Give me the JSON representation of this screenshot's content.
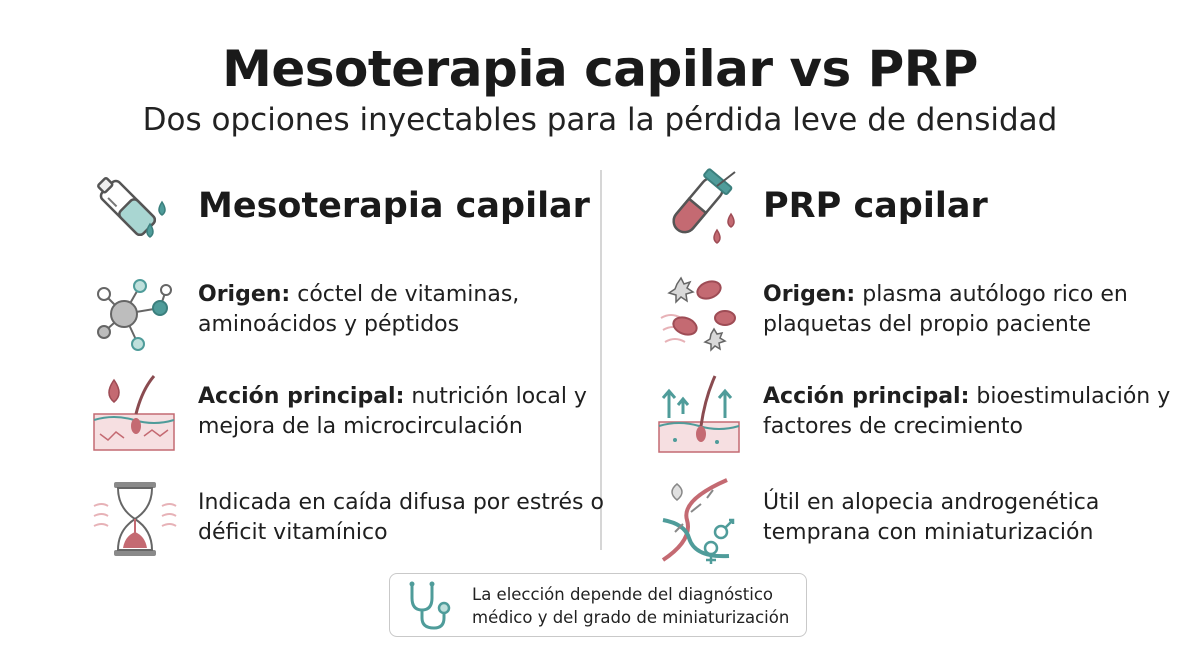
{
  "title": "Mesoterapia capilar vs PRP",
  "subtitle": "Dos opciones inyectables para la pérdida leve de densidad",
  "left": {
    "heading": "Mesoterapia capilar",
    "heading_icon": "ampoule-icon",
    "rows": [
      {
        "icon": "molecule-icon",
        "label": "Origen:",
        "text": " cóctel de vitaminas, aminoácidos y péptidos"
      },
      {
        "icon": "skin-follicle-icon",
        "label": "Acción principal:",
        "text": " nutrición local y mejora de la microcirculación"
      },
      {
        "icon": "hourglass-icon",
        "label": "",
        "text": "Indicada en caída difusa por estrés o déficit vitamínico"
      }
    ]
  },
  "right": {
    "heading": "PRP capilar",
    "heading_icon": "blood-tube-icon",
    "rows": [
      {
        "icon": "blood-cells-icon",
        "label": "Origen:",
        "text": " plasma autólogo rico en plaquetas del propio paciente"
      },
      {
        "icon": "follicle-growth-icon",
        "label": "Acción principal:",
        "text": " bioestimulación y factores de crecimiento"
      },
      {
        "icon": "dna-icon",
        "label": "",
        "text": "Útil en alopecia androgenética temprana con miniaturización"
      }
    ]
  },
  "note": {
    "icon": "stethoscope-icon",
    "text": "La elección depende del diagnóstico médico y del grado de miniaturización"
  },
  "colors": {
    "teal": "#4f9c9a",
    "rose": "#c46a72",
    "gray": "#6e6e6e",
    "light_teal": "#bfe0dc",
    "light_rose": "#f3d6d8"
  }
}
